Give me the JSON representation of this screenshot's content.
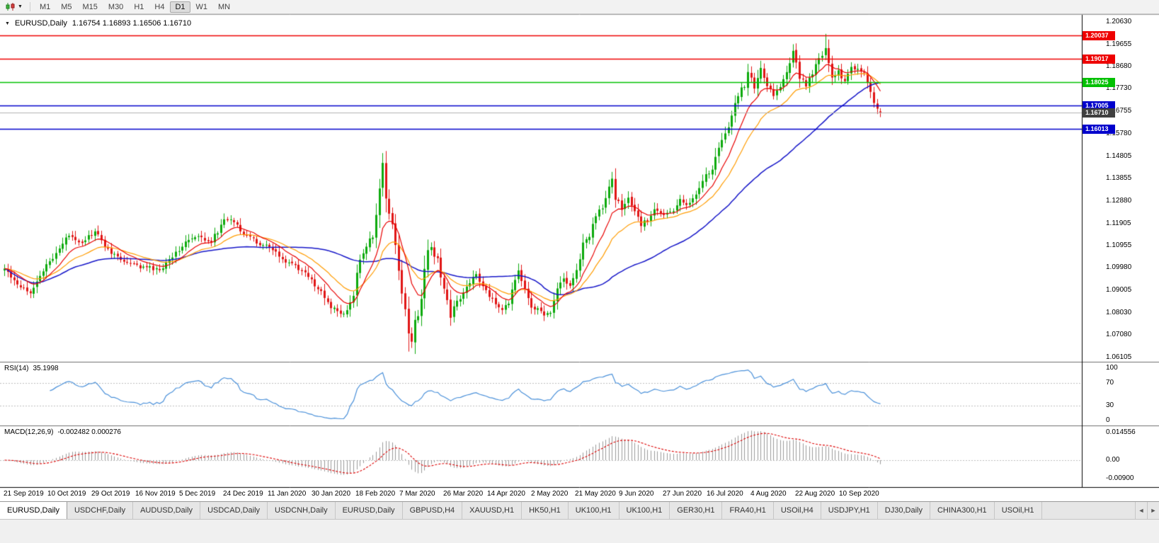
{
  "icons": {
    "dropdown": "▼",
    "tab_left": "◄",
    "tab_right": "►"
  },
  "toolbar": {
    "timeframes": [
      "M1",
      "M5",
      "M15",
      "M30",
      "H1",
      "H4",
      "D1",
      "W1",
      "MN"
    ],
    "active_timeframe": "D1"
  },
  "chart": {
    "symbol": "EURUSD,Daily",
    "ohlc_text": "1.16754 1.16893 1.16506 1.16710"
  },
  "chart_data": {
    "type": "candlestick",
    "symbol": "EURUSD",
    "timeframe": "Daily",
    "y_range": {
      "top": 1.209,
      "bottom": 1.0595
    },
    "price_ticks": [
      "1.20630",
      "1.19655",
      "1.18680",
      "1.17730",
      "1.16755",
      "1.15780",
      "1.14805",
      "1.13855",
      "1.12880",
      "1.11905",
      "1.10955",
      "1.09980",
      "1.09005",
      "1.08030",
      "1.07080",
      "1.06105"
    ],
    "date_labels": [
      "21 Sep 2019",
      "10 Oct 2019",
      "29 Oct 2019",
      "16 Nov 2019",
      "5 Dec 2019",
      "24 Dec 2019",
      "11 Jan 2020",
      "30 Jan 2020",
      "18 Feb 2020",
      "7 Mar 2020",
      "26 Mar 2020",
      "14 Apr 2020",
      "2 May 2020",
      "21 May 2020",
      "9 Jun 2020",
      "27 Jun 2020",
      "16 Jul 2020",
      "4 Aug 2020",
      "22 Aug 2020",
      "10 Sep 2020"
    ],
    "hlines": [
      {
        "price": 1.20037,
        "label": "1.20037",
        "color": "#ee0000"
      },
      {
        "price": 1.19017,
        "label": "1.19017",
        "color": "#ee0000"
      },
      {
        "price": 1.18025,
        "label": "1.18025",
        "color": "#00c000"
      },
      {
        "price": 1.17005,
        "label": "1.17005",
        "color": "#0000cc"
      },
      {
        "price": 1.16013,
        "label": "1.16013",
        "color": "#0000cc"
      }
    ],
    "current_price": {
      "price": 1.1671,
      "label": "1.16710",
      "tag_color": "#3f3f3f"
    },
    "last_candle": {
      "open": 1.16754,
      "high": 1.16893,
      "low": 1.16506,
      "close": 1.1671
    },
    "candles_total": 272,
    "anchors": [
      [
        0,
        1.0995
      ],
      [
        4,
        1.093
      ],
      [
        8,
        1.0895
      ],
      [
        12,
        1.0985
      ],
      [
        16,
        1.1065
      ],
      [
        20,
        1.114
      ],
      [
        24,
        1.111
      ],
      [
        28,
        1.1155
      ],
      [
        32,
        1.1075
      ],
      [
        36,
        1.1035
      ],
      [
        40,
        1.101
      ],
      [
        44,
        1.1
      ],
      [
        48,
        1.0985
      ],
      [
        52,
        1.105
      ],
      [
        56,
        1.111
      ],
      [
        60,
        1.113
      ],
      [
        64,
        1.1115
      ],
      [
        68,
        1.12
      ],
      [
        70,
        1.1215
      ],
      [
        74,
        1.115
      ],
      [
        78,
        1.111
      ],
      [
        82,
        1.1085
      ],
      [
        86,
        1.1035
      ],
      [
        90,
        1.1005
      ],
      [
        94,
        1.096
      ],
      [
        98,
        1.089
      ],
      [
        101,
        1.083
      ],
      [
        104,
        1.0795
      ],
      [
        106,
        1.081
      ],
      [
        108,
        1.089
      ],
      [
        110,
        1.103
      ],
      [
        112,
        1.11
      ],
      [
        114,
        1.113
      ],
      [
        116,
        1.133
      ],
      [
        117,
        1.145
      ],
      [
        118,
        1.129
      ],
      [
        119,
        1.123
      ],
      [
        120,
        1.118
      ],
      [
        121,
        1.11
      ],
      [
        122,
        1.099
      ],
      [
        123,
        1.089
      ],
      [
        124,
        1.081
      ],
      [
        125,
        1.07
      ],
      [
        126,
        1.069
      ],
      [
        127,
        1.077
      ],
      [
        128,
        1.08
      ],
      [
        129,
        1.086
      ],
      [
        130,
        1.1
      ],
      [
        131,
        1.106
      ],
      [
        132,
        1.11
      ],
      [
        133,
        1.104
      ],
      [
        134,
        1.103
      ],
      [
        135,
        1.096
      ],
      [
        136,
        1.091
      ],
      [
        137,
        1.086
      ],
      [
        138,
        1.0795
      ],
      [
        140,
        1.085
      ],
      [
        142,
        1.089
      ],
      [
        144,
        1.0935
      ],
      [
        146,
        1.098
      ],
      [
        148,
        1.0915
      ],
      [
        150,
        1.088
      ],
      [
        152,
        1.0845
      ],
      [
        154,
        1.082
      ],
      [
        156,
        1.084
      ],
      [
        158,
        1.0955
      ],
      [
        159,
        1.098
      ],
      [
        161,
        1.09
      ],
      [
        163,
        1.083
      ],
      [
        165,
        1.0815
      ],
      [
        167,
        1.08
      ],
      [
        169,
        1.0795
      ],
      [
        171,
        1.0915
      ],
      [
        173,
        1.095
      ],
      [
        175,
        1.092
      ],
      [
        177,
        1.099
      ],
      [
        179,
        1.11
      ],
      [
        181,
        1.1135
      ],
      [
        183,
        1.123
      ],
      [
        185,
        1.126
      ],
      [
        187,
        1.134
      ],
      [
        188,
        1.1375
      ],
      [
        189,
        1.13
      ],
      [
        191,
        1.1255
      ],
      [
        193,
        1.13
      ],
      [
        195,
        1.124
      ],
      [
        197,
        1.1185
      ],
      [
        199,
        1.1205
      ],
      [
        201,
        1.126
      ],
      [
        203,
        1.1225
      ],
      [
        205,
        1.123
      ],
      [
        207,
        1.125
      ],
      [
        209,
        1.129
      ],
      [
        211,
        1.1275
      ],
      [
        213,
        1.13
      ],
      [
        215,
        1.134
      ],
      [
        217,
        1.1405
      ],
      [
        219,
        1.1425
      ],
      [
        221,
        1.1525
      ],
      [
        223,
        1.1575
      ],
      [
        225,
        1.1655
      ],
      [
        227,
        1.175
      ],
      [
        229,
        1.179
      ],
      [
        230,
        1.1845
      ],
      [
        232,
        1.178
      ],
      [
        234,
        1.1865
      ],
      [
        236,
        1.179
      ],
      [
        238,
        1.1745
      ],
      [
        240,
        1.179
      ],
      [
        242,
        1.184
      ],
      [
        244,
        1.193
      ],
      [
        246,
        1.1825
      ],
      [
        248,
        1.179
      ],
      [
        250,
        1.1835
      ],
      [
        252,
        1.1905
      ],
      [
        254,
        1.194
      ],
      [
        256,
        1.182
      ],
      [
        258,
        1.1845
      ],
      [
        260,
        1.18
      ],
      [
        262,
        1.1865
      ],
      [
        264,
        1.186
      ],
      [
        266,
        1.184
      ],
      [
        267,
        1.18
      ],
      [
        268,
        1.176
      ],
      [
        269,
        1.172
      ],
      [
        270,
        1.1695
      ],
      [
        271,
        1.1671
      ]
    ],
    "wick_overrides": [
      {
        "i": 117,
        "high": 1.1495
      },
      {
        "i": 125,
        "low": 1.0636
      },
      {
        "i": 244,
        "high": 1.1966
      },
      {
        "i": 254,
        "high": 1.2011
      }
    ],
    "colors": {
      "bull": "#0caa0c",
      "bear": "#e01515",
      "ma_fast": "#e80000",
      "ma_mid": "#ff9c00",
      "ma_slow": "#1616c8",
      "current_line": "#b0b0b0",
      "grid_dotted": "#bdbdbd"
    },
    "moving_averages": [
      {
        "period": 10,
        "method": "ema",
        "color_key": "ma_fast"
      },
      {
        "period": 21,
        "method": "ema",
        "color_key": "ma_mid"
      },
      {
        "period": 50,
        "method": "sma",
        "color_key": "ma_slow"
      }
    ],
    "indicators": {
      "rsi": {
        "name": "RSI(14)",
        "value": "35.1998",
        "color": "#4a90d9",
        "ticks": [
          100,
          70,
          30,
          0
        ],
        "levels": [
          70,
          30
        ]
      },
      "macd": {
        "name": "MACD(12,26,9)",
        "values_text": "-0.002482 0.000276",
        "hist_color": "#9a9a9a",
        "signal_color": "#dd0000",
        "ticks": [
          {
            "label": "0.014556",
            "value": 0.014556
          },
          {
            "label": "0.00",
            "value": 0
          },
          {
            "label": "-0.00900",
            "value": -0.009
          }
        ]
      }
    }
  },
  "tabs": {
    "items": [
      "EURUSD,Daily",
      "USDCHF,Daily",
      "AUDUSD,Daily",
      "USDCAD,Daily",
      "USDCNH,Daily",
      "EURUSD,Daily",
      "GBPUSD,H4",
      "XAUUSD,H1",
      "HK50,H1",
      "UK100,H1",
      "UK100,H1",
      "GER30,H1",
      "FRA40,H1",
      "USOil,H4",
      "USDJPY,H1",
      "DJ30,Daily",
      "CHINA300,H1",
      "USOil,H1"
    ],
    "active_index": 0
  }
}
